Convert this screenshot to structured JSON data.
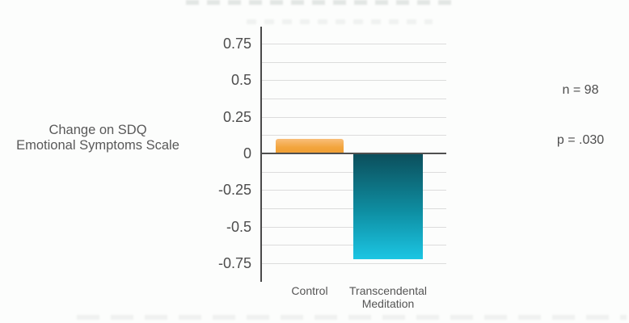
{
  "page": {
    "background": "#FCFDFC"
  },
  "chart": {
    "ylabel_lines": [
      "Change on SDQ",
      "Emotional Symptoms Scale"
    ],
    "annotations": {
      "n": "n = 98",
      "p": "p = .030"
    }
  },
  "chart_data": {
    "type": "bar",
    "categories": [
      "Control",
      "Transcendental Meditation"
    ],
    "values": [
      0.1,
      -0.72
    ],
    "title": "",
    "xlabel": "",
    "ylabel": "Change on SDQ Emotional Symptoms Scale",
    "ylim": [
      -0.875,
      0.875
    ],
    "yticks": [
      {
        "value": 0.75,
        "label": "0.75"
      },
      {
        "value": 0.5,
        "label": "0.5"
      },
      {
        "value": 0.25,
        "label": "0.25"
      },
      {
        "value": 0,
        "label": "0"
      },
      {
        "value": -0.25,
        "label": "-0.25"
      },
      {
        "value": -0.5,
        "label": "-0.5"
      },
      {
        "value": -0.75,
        "label": "-0.75"
      }
    ],
    "minor_grid_step": 0.125,
    "grid": true,
    "legend": false,
    "annotations": [
      "n = 98",
      "p = .030"
    ],
    "colors": {
      "axis": "#4a4a4a",
      "gridline": "#dcdcdc",
      "tick_text": "#4d4d4d",
      "label_text": "#595959",
      "control_bar_gradient": [
        "#F9BE79",
        "#F2A43C",
        "#EF9F33"
      ],
      "tm_bar_gradient": [
        "#0C4F5C",
        "#0E8FA3",
        "#1CC5E3"
      ]
    }
  }
}
